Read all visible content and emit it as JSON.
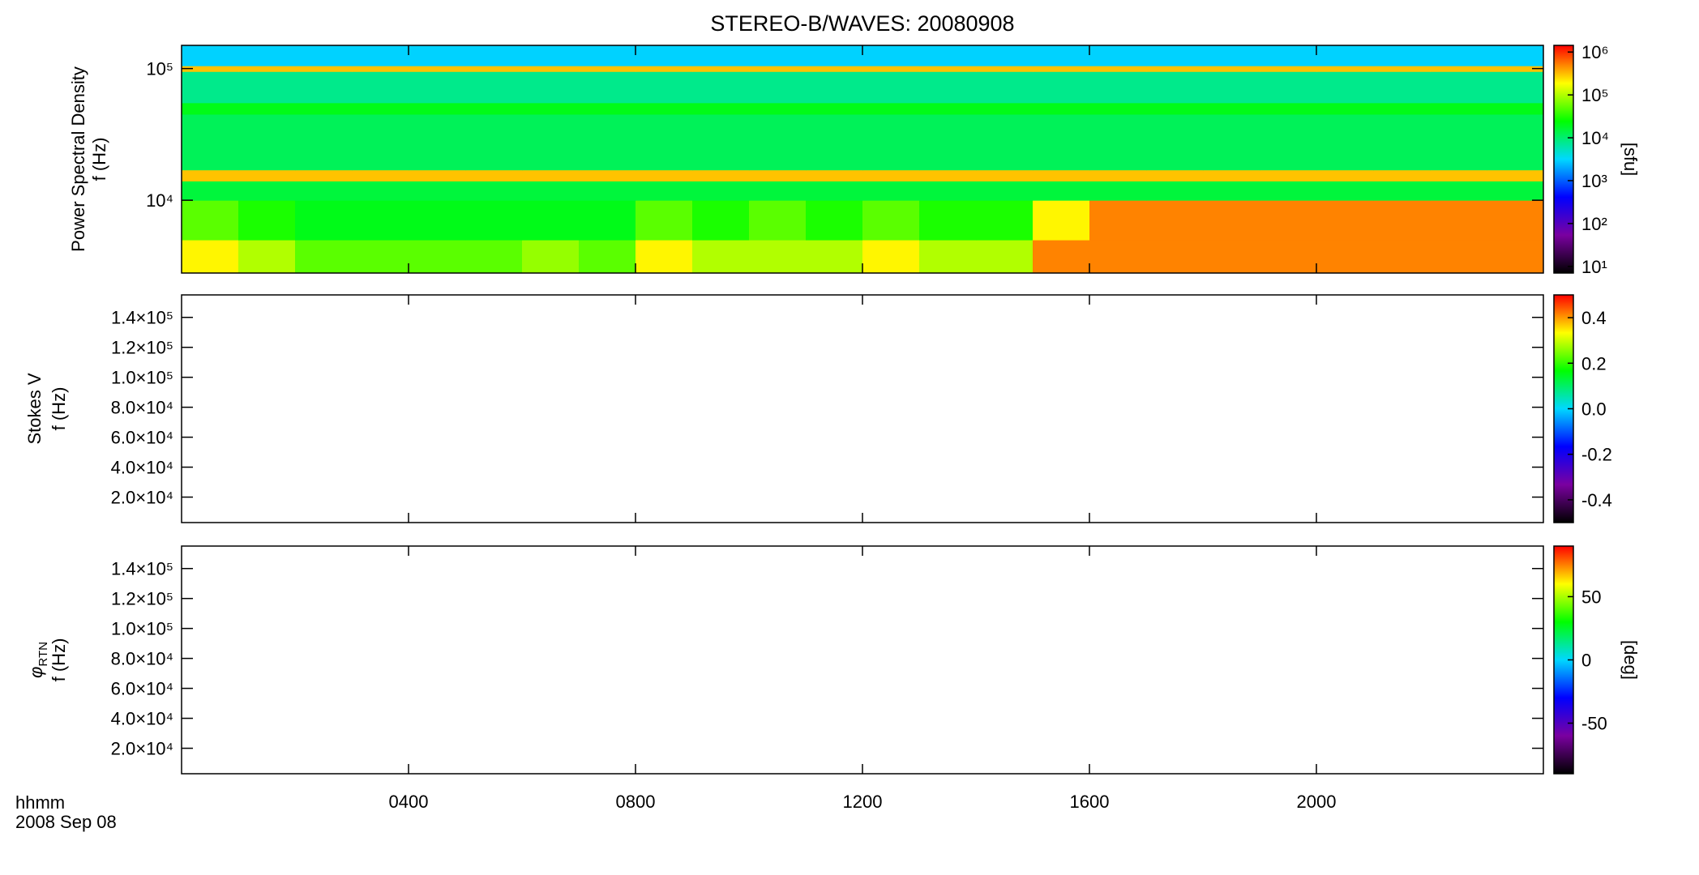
{
  "title": "STEREO-B/WAVES: 20080908",
  "time_axis": {
    "label": "hhmm",
    "date": "2008 Sep 08",
    "xlim": [
      0,
      24
    ],
    "xticks": [
      {
        "value": 4,
        "label": "0400"
      },
      {
        "value": 8,
        "label": "0800"
      },
      {
        "value": 12,
        "label": "1200"
      },
      {
        "value": 16,
        "label": "1600"
      },
      {
        "value": 20,
        "label": "2000"
      }
    ]
  },
  "colormap": [
    "#000000",
    "#7a00a0",
    "#0000ff",
    "#00d8ff",
    "#00ff00",
    "#ffff00",
    "#ff0000"
  ],
  "chart_data": [
    {
      "type": "heatmap",
      "y_label": "Power Spectral Density",
      "y_unit_label": "f (Hz)",
      "ylim": [
        2800,
        150000
      ],
      "ylog": true,
      "yticks": [
        {
          "value": 10000,
          "label": "10⁴"
        },
        {
          "value": 100000,
          "label": "10⁵"
        }
      ],
      "x": [
        0,
        1,
        2,
        3,
        4,
        5,
        6,
        7,
        8,
        9,
        10,
        11,
        12,
        13,
        14,
        15,
        16,
        17,
        18,
        19,
        20,
        21,
        22,
        23,
        24
      ],
      "y": [
        2800,
        5000,
        10000,
        14000,
        17000,
        45000,
        55000,
        95000,
        105000,
        150000
      ],
      "values": [
        [
          200000,
          100000,
          50000,
          50000,
          50000,
          50000,
          80000,
          50000,
          200000,
          100000,
          100000,
          100000,
          200000,
          100000,
          100000,
          500000,
          500000,
          500000,
          500000,
          500000,
          500000,
          500000,
          500000,
          500000
        ],
        [
          50000,
          30000,
          20000,
          20000,
          20000,
          20000,
          20000,
          20000,
          50000,
          30000,
          50000,
          30000,
          50000,
          30000,
          30000,
          200000,
          500000,
          500000,
          500000,
          500000,
          500000,
          500000,
          500000,
          500000
        ],
        [
          15000,
          15000,
          15000,
          15000,
          15000,
          15000,
          15000,
          15000,
          15000,
          15000,
          15000,
          15000,
          15000,
          15000,
          15000,
          15000,
          15000,
          15000,
          15000,
          15000,
          15000,
          15000,
          15000,
          15000
        ],
        [
          300000,
          300000,
          300000,
          300000,
          300000,
          300000,
          300000,
          300000,
          300000,
          300000,
          300000,
          300000,
          300000,
          300000,
          300000,
          300000,
          300000,
          300000,
          300000,
          300000,
          300000,
          300000,
          300000,
          300000
        ],
        [
          12000,
          12000,
          12000,
          12000,
          12000,
          12000,
          12000,
          12000,
          12000,
          12000,
          12000,
          12000,
          12000,
          12000,
          12000,
          12000,
          12000,
          12000,
          12000,
          12000,
          12000,
          12000,
          12000,
          12000
        ],
        [
          20000,
          20000,
          20000,
          20000,
          20000,
          20000,
          20000,
          20000,
          20000,
          20000,
          20000,
          20000,
          20000,
          20000,
          20000,
          20000,
          20000,
          20000,
          20000,
          20000,
          20000,
          20000,
          20000,
          20000
        ],
        [
          8000,
          8000,
          8000,
          8000,
          8000,
          8000,
          8000,
          8000,
          8000,
          8000,
          8000,
          8000,
          8000,
          8000,
          8000,
          8000,
          8000,
          8000,
          8000,
          8000,
          8000,
          8000,
          8000,
          8000
        ],
        [
          300000,
          300000,
          300000,
          300000,
          300000,
          300000,
          300000,
          300000,
          300000,
          300000,
          300000,
          300000,
          300000,
          300000,
          300000,
          300000,
          300000,
          300000,
          300000,
          300000,
          300000,
          300000,
          300000,
          300000
        ],
        [
          3000,
          3000,
          3000,
          3000,
          3000,
          3000,
          3000,
          3000,
          3000,
          3000,
          3000,
          3000,
          3000,
          3000,
          3000,
          3000,
          3000,
          3000,
          3000,
          3000,
          3000,
          3000,
          3000,
          3000
        ]
      ],
      "colorbar": {
        "lim": [
          7,
          1430000
        ],
        "log": true,
        "label": "[sfu]",
        "ticks": [
          {
            "value": 10,
            "label": "10¹"
          },
          {
            "value": 100,
            "label": "10²"
          },
          {
            "value": 1000,
            "label": "10³"
          },
          {
            "value": 10000,
            "label": "10⁴"
          },
          {
            "value": 100000,
            "label": "10⁵"
          },
          {
            "value": 1000000,
            "label": "10⁶"
          }
        ]
      }
    },
    {
      "type": "heatmap",
      "y_label": "Stokes V",
      "y_unit_label": "f (Hz)",
      "ylim": [
        3000,
        155000
      ],
      "ylog": false,
      "yticks": [
        {
          "value": 20000,
          "label": "2.0×10⁴"
        },
        {
          "value": 40000,
          "label": "4.0×10⁴"
        },
        {
          "value": 60000,
          "label": "6.0×10⁴"
        },
        {
          "value": 80000,
          "label": "8.0×10⁴"
        },
        {
          "value": 100000,
          "label": "1.0×10⁵"
        },
        {
          "value": 120000,
          "label": "1.2×10⁵"
        },
        {
          "value": 140000,
          "label": "1.4×10⁵"
        }
      ],
      "colorbar": {
        "lim": [
          -0.5,
          0.5
        ],
        "log": false,
        "ticks": [
          -0.4,
          -0.2,
          {
            "value": 0,
            "label": "0.0"
          },
          0.2,
          0.4
        ]
      }
    },
    {
      "type": "heatmap",
      "y_label": "φ",
      "y_label_sub": "RTN",
      "y_unit_label": "f (Hz)",
      "ylim": [
        3000,
        155000
      ],
      "ylog": false,
      "yticks": [
        {
          "value": 20000,
          "label": "2.0×10⁴"
        },
        {
          "value": 40000,
          "label": "4.0×10⁴"
        },
        {
          "value": 60000,
          "label": "6.0×10⁴"
        },
        {
          "value": 80000,
          "label": "8.0×10⁴"
        },
        {
          "value": 100000,
          "label": "1.0×10⁵"
        },
        {
          "value": 120000,
          "label": "1.2×10⁵"
        },
        {
          "value": 140000,
          "label": "1.4×10⁵"
        }
      ],
      "colorbar": {
        "lim": [
          -90,
          90
        ],
        "log": false,
        "label": "[deg]",
        "ticks": [
          -50,
          0,
          50
        ]
      }
    }
  ]
}
